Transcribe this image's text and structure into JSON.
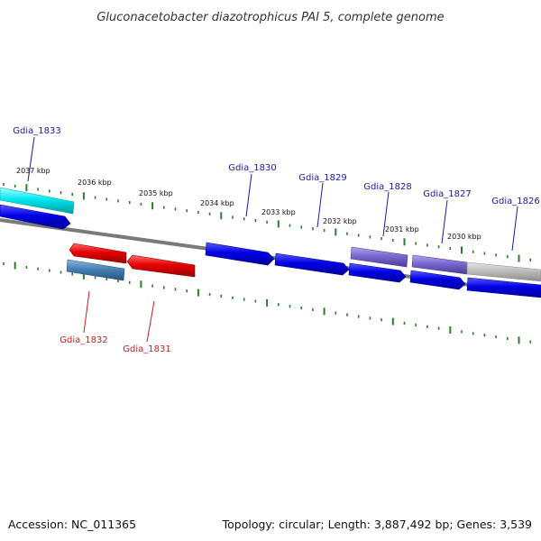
{
  "title": "Gluconacetobacter diazotrophicus PAI 5, complete genome",
  "footer": {
    "accession": "Accession: NC_011365",
    "summary": "Topology: circular; Length: 3,887,492 bp; Genes: 3,539"
  },
  "colors": {
    "backbone": "#7a7a7a",
    "tick": "#2e7d2e",
    "forward_gene": "#0000e6",
    "reverse_gene": "#e60000",
    "forward_label": "#1a1aa6",
    "reverse_label": "#c81e1e",
    "cyan_gene": "#00e0e6",
    "steelblue_gene": "#4682b4",
    "purple_gene": "#7b68d0",
    "gray_gene": "#bdbdbd"
  },
  "ruler": {
    "labels": [
      "2037 kbp",
      "2036 kbp",
      "2035 kbp",
      "2034 kbp",
      "2033 kbp",
      "2032 kbp",
      "2031 kbp",
      "2030 kbp"
    ]
  },
  "genes": [
    {
      "name": "Gdia_1833",
      "strand": "+",
      "color_key": "cyan_gene"
    },
    {
      "name": "Gdia_1832",
      "strand": "-",
      "color_key": "steelblue_gene"
    },
    {
      "name": "Gdia_1831",
      "strand": "-",
      "color_key": "reverse_gene"
    },
    {
      "name": "Gdia_1830",
      "strand": "+",
      "color_key": "forward_gene"
    },
    {
      "name": "Gdia_1829",
      "strand": "+",
      "color_key": "forward_gene"
    },
    {
      "name": "Gdia_1828",
      "strand": "+",
      "color_key": "purple_gene"
    },
    {
      "name": "Gdia_1827",
      "strand": "+",
      "color_key": "purple_gene"
    },
    {
      "name": "Gdia_1826",
      "strand": "+",
      "color_key": "gray_gene"
    }
  ]
}
